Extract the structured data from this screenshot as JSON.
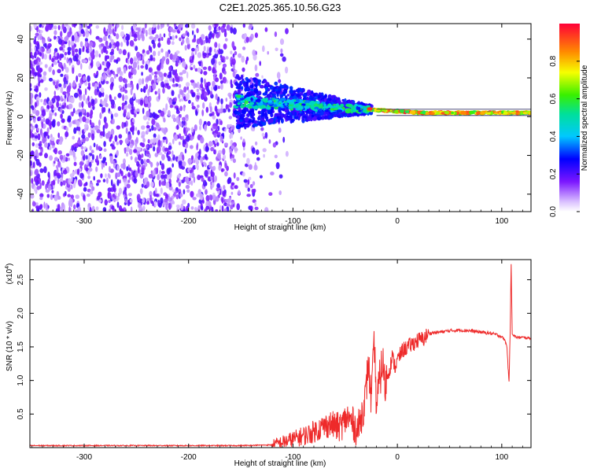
{
  "figure": {
    "title": "C2E1.2025.365.10.56.G23"
  },
  "chart_data": [
    {
      "type": "heatmap",
      "title": "C2E1.2025.365.10.56.G23",
      "xlabel": "Height of straight line (km)",
      "ylabel": "Frequency (Hz)",
      "xlim": [
        -352,
        128
      ],
      "ylim": [
        -49,
        48
      ],
      "x_ticks": [
        -300,
        -200,
        -100,
        0,
        100
      ],
      "y_ticks": [
        -40,
        -20,
        0,
        20,
        40
      ],
      "colorbar": {
        "label": "Normalized spectral amplitude",
        "range": [
          0,
          1
        ],
        "ticks": [
          0.0,
          0.2,
          0.4,
          0.6,
          0.8
        ],
        "tick_labels": [
          "0.0",
          "0.2",
          "0.4",
          "0.6",
          "0.8"
        ]
      },
      "description_regions": {
        "noise_region_x": [
          -352,
          -130
        ],
        "noise_amplitude": 0.2,
        "signal_track_start_x": -155,
        "signal_track_end_x": 128,
        "signal_frequency_start": 8,
        "signal_frequency_end": 2
      }
    },
    {
      "type": "line",
      "xlabel": "Height of straight line (km)",
      "ylabel": "SNR (10 * v/v)",
      "y_multiplier_label": "(x10",
      "y_multiplier_exp": "4",
      "xlim": [
        -352,
        128
      ],
      "ylim": [
        0.0,
        2.8
      ],
      "x_ticks": [
        -300,
        -200,
        -100,
        0,
        100
      ],
      "y_ticks": [
        0.5,
        1.0,
        1.5,
        2.0,
        2.5
      ],
      "y_tick_labels": [
        "0.5",
        "1.0",
        "1.5",
        "2.0",
        "2.5"
      ],
      "color": "#ee2a2a",
      "series": [
        {
          "x": [
            -352,
            -300,
            -250,
            -200,
            -150,
            -120,
            -105,
            -95,
            -85,
            -75,
            -65,
            -55,
            -48,
            -42,
            -38,
            -34,
            -30,
            -28,
            -25,
            -22,
            -20,
            -17,
            -14,
            -12,
            -10,
            -7,
            -5,
            -2,
            0,
            5,
            10,
            15,
            20,
            25,
            30,
            40,
            50,
            60,
            70,
            80,
            90,
            95,
            100,
            103,
            105,
            106,
            107,
            108,
            109,
            110,
            112,
            115,
            120,
            128
          ],
          "values": [
            0.03,
            0.03,
            0.03,
            0.03,
            0.03,
            0.04,
            0.1,
            0.15,
            0.2,
            0.28,
            0.35,
            0.3,
            0.45,
            0.35,
            0.25,
            0.5,
            0.8,
            1.3,
            0.7,
            1.55,
            0.6,
            1.0,
            1.3,
            0.9,
            1.05,
            1.2,
            1.35,
            1.2,
            1.3,
            1.45,
            1.5,
            1.55,
            1.6,
            1.62,
            1.7,
            1.72,
            1.74,
            1.75,
            1.74,
            1.72,
            1.7,
            1.68,
            1.65,
            1.6,
            1.5,
            1.2,
            0.98,
            1.7,
            2.75,
            1.7,
            1.66,
            1.64,
            1.64,
            1.63
          ]
        }
      ]
    }
  ]
}
